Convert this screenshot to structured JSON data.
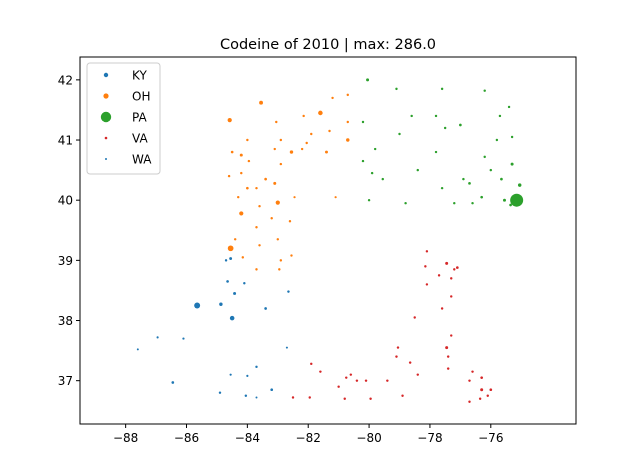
{
  "chart_data": {
    "type": "scatter",
    "title": "Codeine of 2010 | max: 286.0",
    "xlabel": "",
    "ylabel": "",
    "xlim": [
      -89.5,
      -73.2
    ],
    "ylim": [
      36.28,
      42.38
    ],
    "xticks": [
      -88,
      -86,
      -84,
      -82,
      -80,
      -78,
      -76
    ],
    "xtick_labels": [
      "−88",
      "−86",
      "−84",
      "−82",
      "−80",
      "−78",
      "−76"
    ],
    "yticks": [
      37,
      38,
      39,
      40,
      41,
      42
    ],
    "ytick_labels": [
      "37",
      "38",
      "39",
      "40",
      "41",
      "42"
    ],
    "grid": false,
    "legend_position": "top-left",
    "size_encodes": "value",
    "series": [
      {
        "name": "KY",
        "color": "#1f77b4",
        "points": [
          [
            -85.65,
            38.25,
            60
          ],
          [
            -84.5,
            38.04,
            35
          ],
          [
            -84.87,
            38.27,
            20
          ],
          [
            -84.42,
            38.45,
            15
          ],
          [
            -84.65,
            38.65,
            12
          ],
          [
            -84.1,
            38.62,
            10
          ],
          [
            -83.4,
            38.2,
            12
          ],
          [
            -82.65,
            38.48,
            10
          ],
          [
            -84.7,
            39.0,
            10
          ],
          [
            -84.55,
            39.03,
            14
          ],
          [
            -86.1,
            37.7,
            8
          ],
          [
            -86.95,
            37.72,
            8
          ],
          [
            -87.6,
            37.52,
            6
          ],
          [
            -86.45,
            36.97,
            12
          ],
          [
            -84.9,
            36.8,
            10
          ],
          [
            -84.05,
            36.75,
            10
          ],
          [
            -83.7,
            36.72,
            6
          ],
          [
            -83.2,
            36.85,
            12
          ],
          [
            -83.7,
            37.23,
            10
          ],
          [
            -84.0,
            37.08,
            8
          ],
          [
            -84.55,
            37.1,
            8
          ],
          [
            -82.7,
            37.55,
            6
          ]
        ]
      },
      {
        "name": "OH",
        "color": "#ff7f0e",
        "points": [
          [
            -84.55,
            39.2,
            55
          ],
          [
            -84.2,
            39.78,
            30
          ],
          [
            -83.0,
            39.96,
            30
          ],
          [
            -81.6,
            41.45,
            35
          ],
          [
            -84.58,
            41.33,
            30
          ],
          [
            -83.55,
            41.62,
            25
          ],
          [
            -80.7,
            41.0,
            20
          ],
          [
            -82.55,
            40.8,
            20
          ],
          [
            -81.4,
            40.8,
            15
          ],
          [
            -83.1,
            40.28,
            15
          ],
          [
            -84.2,
            40.75,
            15
          ],
          [
            -84.5,
            40.8,
            12
          ],
          [
            -83.4,
            40.35,
            12
          ],
          [
            -84.0,
            40.2,
            12
          ],
          [
            -84.3,
            40.05,
            10
          ],
          [
            -83.7,
            40.2,
            10
          ],
          [
            -82.05,
            40.95,
            10
          ],
          [
            -82.9,
            40.6,
            10
          ],
          [
            -83.6,
            39.9,
            10
          ],
          [
            -83.7,
            39.55,
            10
          ],
          [
            -83.2,
            39.7,
            10
          ],
          [
            -82.6,
            39.65,
            10
          ],
          [
            -82.45,
            40.05,
            8
          ],
          [
            -84.4,
            39.35,
            10
          ],
          [
            -83.6,
            39.25,
            10
          ],
          [
            -83.0,
            39.35,
            10
          ],
          [
            -82.9,
            39.0,
            10
          ],
          [
            -82.55,
            39.08,
            10
          ],
          [
            -84.15,
            39.05,
            10
          ],
          [
            -83.7,
            38.85,
            10
          ],
          [
            -82.95,
            38.85,
            10
          ],
          [
            -83.05,
            41.3,
            10
          ],
          [
            -82.15,
            41.4,
            10
          ],
          [
            -81.9,
            41.1,
            10
          ],
          [
            -81.2,
            41.7,
            10
          ],
          [
            -80.7,
            41.75,
            10
          ],
          [
            -81.3,
            41.15,
            10
          ],
          [
            -80.7,
            41.3,
            10
          ],
          [
            -81.1,
            40.05,
            8
          ],
          [
            -82.9,
            41.0,
            10
          ],
          [
            -84.0,
            41.0,
            10
          ],
          [
            -84.6,
            40.4,
            10
          ],
          [
            -83.95,
            40.65,
            10
          ],
          [
            -83.1,
            40.85,
            10
          ],
          [
            -82.2,
            40.85,
            10
          ],
          [
            -84.2,
            40.45,
            10
          ]
        ]
      },
      {
        "name": "PA",
        "color": "#2ca02c",
        "points": [
          [
            -75.15,
            40.0,
            286
          ],
          [
            -75.05,
            40.25,
            20
          ],
          [
            -75.55,
            40.0,
            15
          ],
          [
            -75.35,
            39.92,
            12
          ],
          [
            -75.3,
            40.6,
            15
          ],
          [
            -75.65,
            40.35,
            12
          ],
          [
            -76.3,
            40.05,
            12
          ],
          [
            -76.7,
            40.28,
            12
          ],
          [
            -76.9,
            40.35,
            10
          ],
          [
            -76.2,
            40.72,
            10
          ],
          [
            -77.0,
            41.25,
            12
          ],
          [
            -75.7,
            41.4,
            10
          ],
          [
            -75.3,
            41.05,
            10
          ],
          [
            -76.2,
            41.82,
            10
          ],
          [
            -75.4,
            41.55,
            10
          ],
          [
            -77.6,
            41.85,
            10
          ],
          [
            -77.8,
            41.4,
            10
          ],
          [
            -78.6,
            41.4,
            10
          ],
          [
            -79.1,
            41.85,
            10
          ],
          [
            -80.05,
            42.0,
            15
          ],
          [
            -80.2,
            41.3,
            10
          ],
          [
            -79.0,
            41.1,
            10
          ],
          [
            -77.8,
            40.8,
            10
          ],
          [
            -78.4,
            40.5,
            10
          ],
          [
            -79.8,
            40.85,
            10
          ],
          [
            -80.2,
            40.65,
            10
          ],
          [
            -79.9,
            40.45,
            10
          ],
          [
            -79.55,
            40.35,
            10
          ],
          [
            -80.0,
            40.0,
            10
          ],
          [
            -78.8,
            39.95,
            10
          ],
          [
            -77.6,
            40.2,
            10
          ],
          [
            -77.2,
            39.95,
            10
          ],
          [
            -76.6,
            39.95,
            10
          ],
          [
            -76.0,
            40.5,
            10
          ],
          [
            -77.5,
            41.2,
            10
          ],
          [
            -75.8,
            41.0,
            10
          ]
        ]
      },
      {
        "name": "VA",
        "color": "#d62728",
        "points": [
          [
            -77.45,
            38.95,
            15
          ],
          [
            -77.45,
            37.55,
            15
          ],
          [
            -77.1,
            38.88,
            12
          ],
          [
            -76.3,
            36.85,
            15
          ],
          [
            -76.0,
            36.85,
            12
          ],
          [
            -76.3,
            37.05,
            12
          ],
          [
            -78.1,
            39.15,
            10
          ],
          [
            -77.7,
            38.75,
            10
          ],
          [
            -77.3,
            38.7,
            10
          ],
          [
            -77.2,
            38.85,
            10
          ],
          [
            -78.15,
            38.9,
            10
          ],
          [
            -78.5,
            38.05,
            10
          ],
          [
            -78.1,
            38.6,
            10
          ],
          [
            -77.6,
            38.2,
            10
          ],
          [
            -77.3,
            38.4,
            10
          ],
          [
            -79.05,
            37.55,
            10
          ],
          [
            -79.1,
            37.4,
            10
          ],
          [
            -78.4,
            37.1,
            10
          ],
          [
            -77.4,
            37.4,
            10
          ],
          [
            -77.3,
            37.75,
            10
          ],
          [
            -77.4,
            37.2,
            10
          ],
          [
            -76.6,
            37.15,
            10
          ],
          [
            -76.7,
            36.65,
            10
          ],
          [
            -76.35,
            36.7,
            10
          ],
          [
            -79.95,
            36.7,
            10
          ],
          [
            -80.1,
            37.0,
            10
          ],
          [
            -80.6,
            37.1,
            10
          ],
          [
            -80.8,
            36.7,
            10
          ],
          [
            -81.6,
            37.15,
            10
          ],
          [
            -82.5,
            36.72,
            10
          ],
          [
            -81.9,
            37.28,
            10
          ],
          [
            -81.0,
            36.9,
            10
          ],
          [
            -80.75,
            37.05,
            10
          ],
          [
            -80.4,
            37.0,
            10
          ],
          [
            -79.4,
            37.0,
            10
          ],
          [
            -78.65,
            37.3,
            10
          ],
          [
            -78.9,
            36.75,
            10
          ],
          [
            -81.95,
            36.72,
            10
          ],
          [
            -76.7,
            37.0,
            10
          ],
          [
            -76.1,
            36.75,
            10
          ]
        ]
      },
      {
        "name": "WA",
        "color": "#1f77b4",
        "points": []
      }
    ]
  }
}
